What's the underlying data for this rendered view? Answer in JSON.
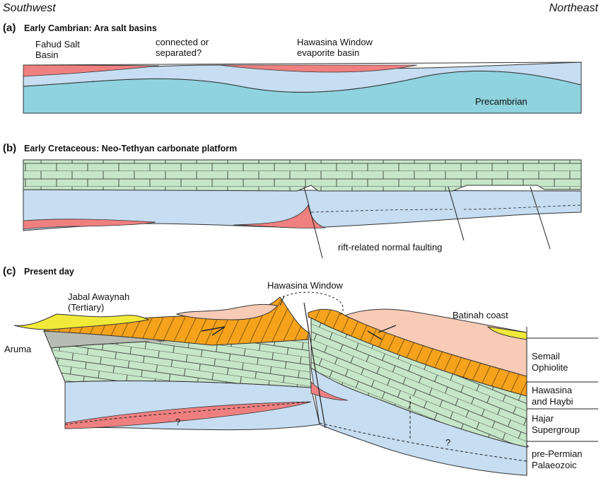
{
  "orientation": {
    "left": "Southwest",
    "right": "Northeast"
  },
  "panel_a": {
    "letter": "(a)",
    "title": "Early Cambrian:  Ara salt basins",
    "labels": {
      "fahud_1": "Fahud Salt",
      "fahud_2": "Basin",
      "connected_1": "connected or",
      "connected_2": "separated?",
      "hawasina_1": "Hawasina Window",
      "hawasina_2": "evaporite basin",
      "precambrian": "Precambrian"
    }
  },
  "panel_b": {
    "letter": "(b)",
    "title": "Early Cretaceous:  Neo-Tethyan carbonate platform",
    "labels": {
      "faulting": "rift-related normal faulting"
    }
  },
  "panel_c": {
    "letter": "(c)",
    "title": "Present day",
    "labels": {
      "jabal_1": "Jabal Awaynah",
      "jabal_2": "(Tertiary)",
      "aruma": "Aruma",
      "window": "Hawasina Window",
      "batinah": "Batinah coast",
      "question": "?"
    }
  },
  "legend": {
    "items": [
      {
        "line1": "Semail",
        "line2": "Ophiolite"
      },
      {
        "line1": "Hawasina",
        "line2": "and Haybi"
      },
      {
        "line1": "Hajar",
        "line2": "Supergroup"
      },
      {
        "line1": "pre-Permian",
        "line2": "Palaeozoic"
      }
    ]
  },
  "colors": {
    "salt": "#f08080",
    "palaeozoic": "#c6ddf2",
    "precambrian": "#8ed3de",
    "carbonate": "#c6e6c8",
    "hawasina": "#f5a21d",
    "ophiolite": "#f8cbb6",
    "tertiary": "#f2ea3a",
    "aruma": "#b7bbb1"
  }
}
